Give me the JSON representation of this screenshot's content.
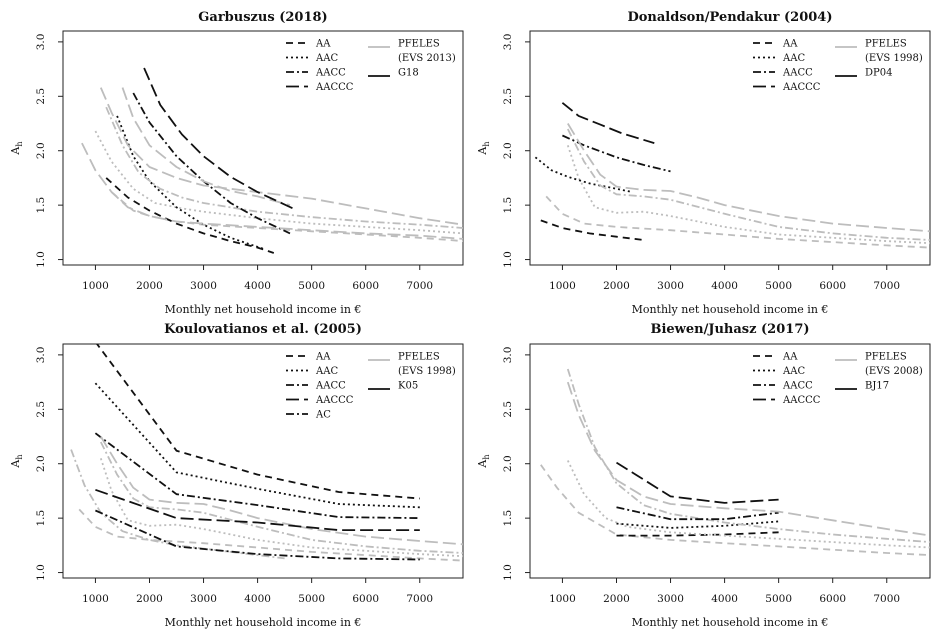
{
  "figure": {
    "x_unit_symbol": "€"
  },
  "chart_data": [
    {
      "type": "line",
      "title": "Garbuszus (2018)",
      "xlabel": "Monthly net household income in €",
      "ylabel": "A",
      "ylabel_sub": "h",
      "xlim": [
        400,
        7800
      ],
      "ylim": [
        0.95,
        3.1
      ],
      "xticks": [
        1000,
        2000,
        3000,
        4000,
        5000,
        6000,
        7000
      ],
      "yticks": [
        1.0,
        1.5,
        2.0,
        2.5,
        3.0
      ],
      "legend_col1": [
        "AA",
        "AAC",
        "AACC",
        "AACCC"
      ],
      "legend_col2": [
        "PFELES",
        "(EVS 2013)",
        "G18"
      ],
      "series": [
        {
          "name": "AA",
          "group": "pfeles",
          "dash": "dashed",
          "x": [
            1300,
            1700,
            2000,
            2500,
            3000,
            4000,
            5000,
            6000,
            7000,
            7800
          ],
          "y": [
            1.62,
            1.45,
            1.4,
            1.35,
            1.32,
            1.29,
            1.26,
            1.23,
            1.2,
            1.17
          ]
        },
        {
          "name": "AA",
          "group": "study",
          "dash": "dashed",
          "x": [
            1200,
            1600,
            2000,
            2500,
            3000,
            3500,
            4000,
            4300
          ],
          "y": [
            1.75,
            1.57,
            1.45,
            1.33,
            1.24,
            1.17,
            1.11,
            1.06
          ]
        },
        {
          "name": "AAC",
          "group": "pfeles",
          "dash": "dotted",
          "x": [
            1000,
            1300,
            1700,
            2100,
            2600,
            3000,
            4000,
            5000,
            6000,
            7000,
            7800
          ],
          "y": [
            2.18,
            1.9,
            1.65,
            1.52,
            1.47,
            1.44,
            1.38,
            1.33,
            1.3,
            1.27,
            1.24
          ]
        },
        {
          "name": "AAC",
          "group": "study",
          "dash": "dotted",
          "x": [
            1400,
            1700,
            2000,
            2500,
            3000,
            3500,
            4100
          ],
          "y": [
            2.32,
            1.95,
            1.72,
            1.48,
            1.32,
            1.2,
            1.1
          ]
        },
        {
          "name": "AACC",
          "group": "pfeles",
          "dash": "dashdot",
          "x": [
            1200,
            1500,
            1800,
            2200,
            2600,
            3000,
            4000,
            5000,
            6000,
            7000,
            7800
          ],
          "y": [
            2.4,
            2.05,
            1.8,
            1.65,
            1.57,
            1.52,
            1.44,
            1.39,
            1.35,
            1.32,
            1.29
          ]
        },
        {
          "name": "AACC",
          "group": "study",
          "dash": "dashdot",
          "x": [
            1700,
            2000,
            2500,
            3000,
            3500,
            4000,
            4600
          ],
          "y": [
            2.53,
            2.26,
            1.95,
            1.72,
            1.52,
            1.38,
            1.24
          ]
        },
        {
          "name": "AACCC",
          "group": "pfeles",
          "dash": "longdash",
          "x": [
            750,
            1000,
            1300,
            1600,
            2000,
            2500,
            3000,
            4000,
            5000,
            6000,
            7000,
            7800
          ],
          "y": [
            2.07,
            1.82,
            1.62,
            1.48,
            1.4,
            1.35,
            1.33,
            1.3,
            1.27,
            1.24,
            1.22,
            1.19
          ]
        },
        {
          "name": "AACCC",
          "group": "pfeles",
          "dash": "longdash",
          "x": [
            1100,
            1300,
            1600,
            2000,
            2500,
            3000,
            4000,
            5000,
            6000,
            7000,
            7800
          ],
          "y": [
            2.58,
            2.35,
            2.05,
            1.85,
            1.75,
            1.68,
            1.62,
            1.56,
            1.47,
            1.38,
            1.32
          ]
        },
        {
          "name": "AACCC",
          "group": "pfeles",
          "dash": "longdash",
          "x": [
            1500,
            1700,
            2000,
            2500,
            3000,
            3500,
            4000,
            4600
          ],
          "y": [
            2.58,
            2.3,
            2.05,
            1.85,
            1.72,
            1.63,
            1.58,
            1.5
          ]
        },
        {
          "name": "AACCC",
          "group": "study",
          "dash": "longdash",
          "x": [
            1900,
            2200,
            2600,
            3000,
            3500,
            4000,
            4700
          ],
          "y": [
            2.76,
            2.42,
            2.15,
            1.95,
            1.76,
            1.62,
            1.46
          ]
        }
      ]
    },
    {
      "type": "line",
      "title": "Donaldson/Pendakur (2004)",
      "xlabel": "Monthly net household income in €",
      "ylabel": "A",
      "ylabel_sub": "h",
      "xlim": [
        400,
        7800
      ],
      "ylim": [
        0.95,
        3.1
      ],
      "xticks": [
        1000,
        2000,
        3000,
        4000,
        5000,
        6000,
        7000
      ],
      "yticks": [
        1.0,
        1.5,
        2.0,
        2.5,
        3.0
      ],
      "legend_col1": [
        "AA",
        "AAC",
        "AACC",
        "AACCC"
      ],
      "legend_col2": [
        "PFELES",
        "(EVS 1998)",
        "DP04"
      ],
      "series": [
        {
          "name": "AA",
          "group": "pfeles",
          "dash": "dashed",
          "x": [
            700,
            1000,
            1400,
            2000,
            3000,
            4000,
            5000,
            6000,
            7000,
            7800
          ],
          "y": [
            1.58,
            1.42,
            1.33,
            1.3,
            1.27,
            1.23,
            1.19,
            1.16,
            1.13,
            1.11
          ]
        },
        {
          "name": "AA",
          "group": "study",
          "dash": "dashed",
          "x": [
            600,
            1000,
            1500,
            2000,
            2500
          ],
          "y": [
            1.36,
            1.29,
            1.24,
            1.21,
            1.18
          ]
        },
        {
          "name": "AAC",
          "group": "pfeles",
          "dash": "dotted",
          "x": [
            1100,
            1300,
            1600,
            2000,
            2500,
            3000,
            4000,
            5000,
            6000,
            7000,
            7800
          ],
          "y": [
            2.05,
            1.75,
            1.48,
            1.43,
            1.44,
            1.4,
            1.3,
            1.23,
            1.2,
            1.17,
            1.15
          ]
        },
        {
          "name": "AAC",
          "group": "study",
          "dash": "dotted",
          "x": [
            500,
            800,
            1100,
            1500,
            2000,
            2300
          ],
          "y": [
            1.94,
            1.82,
            1.76,
            1.7,
            1.65,
            1.62
          ]
        },
        {
          "name": "AACC",
          "group": "pfeles",
          "dash": "dashdot",
          "x": [
            1100,
            1400,
            1700,
            2000,
            2500,
            3000,
            4000,
            5000,
            6000,
            7000,
            7800
          ],
          "y": [
            2.2,
            1.9,
            1.68,
            1.6,
            1.58,
            1.55,
            1.42,
            1.3,
            1.24,
            1.2,
            1.18
          ]
        },
        {
          "name": "AACC",
          "group": "study",
          "dash": "dashdot",
          "x": [
            1000,
            1400,
            2000,
            2500,
            3000
          ],
          "y": [
            2.14,
            2.05,
            1.94,
            1.87,
            1.81
          ]
        },
        {
          "name": "AACCC",
          "group": "pfeles",
          "dash": "longdash",
          "x": [
            1100,
            1400,
            1700,
            2000,
            2500,
            3000,
            3500,
            4000,
            5000,
            6000,
            7000,
            7800
          ],
          "y": [
            2.25,
            2.0,
            1.78,
            1.67,
            1.64,
            1.63,
            1.57,
            1.5,
            1.4,
            1.33,
            1.29,
            1.26
          ]
        },
        {
          "name": "AACCC",
          "group": "study",
          "dash": "longdash",
          "x": [
            1000,
            1300,
            1700,
            2100,
            2700
          ],
          "y": [
            2.44,
            2.32,
            2.24,
            2.16,
            2.07
          ]
        }
      ]
    },
    {
      "type": "line",
      "title": "Koulovatianos et al. (2005)",
      "xlabel": "Monthly net household income in €",
      "ylabel": "A",
      "ylabel_sub": "h",
      "xlim": [
        400,
        7800
      ],
      "ylim": [
        0.95,
        3.1
      ],
      "xticks": [
        1000,
        2000,
        3000,
        4000,
        5000,
        6000,
        7000
      ],
      "yticks": [
        1.0,
        1.5,
        2.0,
        2.5,
        3.0
      ],
      "legend_col1": [
        "AA",
        "AAC",
        "AACC",
        "AACCC",
        "AC"
      ],
      "legend_col2": [
        "PFELES",
        "(EVS 1998)",
        "K05"
      ],
      "series": [
        {
          "name": "AA",
          "group": "pfeles",
          "dash": "dashed",
          "x": [
            700,
            1000,
            1400,
            2000,
            3000,
            4000,
            5000,
            6000,
            7000,
            7800
          ],
          "y": [
            1.58,
            1.42,
            1.33,
            1.3,
            1.27,
            1.23,
            1.19,
            1.16,
            1.13,
            1.11
          ]
        },
        {
          "name": "AA",
          "group": "study",
          "dash": "dashed",
          "x": [
            1000,
            2500,
            4000,
            5500,
            7000
          ],
          "y": [
            3.12,
            2.12,
            1.9,
            1.74,
            1.68
          ]
        },
        {
          "name": "AAC",
          "group": "pfeles",
          "dash": "dotted",
          "x": [
            1100,
            1300,
            1600,
            2000,
            2500,
            3000,
            4000,
            5000,
            6000,
            7000,
            7800
          ],
          "y": [
            2.05,
            1.75,
            1.48,
            1.43,
            1.44,
            1.4,
            1.3,
            1.23,
            1.2,
            1.17,
            1.15
          ]
        },
        {
          "name": "AAC",
          "group": "study",
          "dash": "dotted",
          "x": [
            1000,
            2500,
            4000,
            5500,
            7000
          ],
          "y": [
            2.74,
            1.92,
            1.77,
            1.63,
            1.6
          ]
        },
        {
          "name": "AACC",
          "group": "pfeles",
          "dash": "dashdot",
          "x": [
            1100,
            1400,
            1700,
            2000,
            2500,
            3000,
            4000,
            5000,
            6000,
            7000,
            7800
          ],
          "y": [
            2.2,
            1.9,
            1.68,
            1.6,
            1.58,
            1.55,
            1.42,
            1.3,
            1.24,
            1.2,
            1.18
          ]
        },
        {
          "name": "AACC",
          "group": "study",
          "dash": "dashdot",
          "x": [
            1000,
            2500,
            4000,
            5500,
            7000
          ],
          "y": [
            2.28,
            1.72,
            1.62,
            1.51,
            1.5
          ]
        },
        {
          "name": "AACCC",
          "group": "pfeles",
          "dash": "longdash",
          "x": [
            1100,
            1400,
            1700,
            2000,
            2500,
            3000,
            3500,
            4000,
            5000,
            6000,
            7000,
            7800
          ],
          "y": [
            2.25,
            2.0,
            1.78,
            1.67,
            1.64,
            1.63,
            1.57,
            1.5,
            1.4,
            1.33,
            1.29,
            1.26
          ]
        },
        {
          "name": "AACCC",
          "group": "study",
          "dash": "longdash",
          "x": [
            1000,
            2500,
            4000,
            5500,
            7000
          ],
          "y": [
            1.76,
            1.5,
            1.46,
            1.39,
            1.39
          ]
        },
        {
          "name": "AC",
          "group": "pfeles",
          "dash": "dashdot",
          "x": [
            550,
            800,
            1100,
            1500,
            2000,
            2500,
            3000,
            3500,
            4000,
            4500
          ],
          "y": [
            2.13,
            1.8,
            1.55,
            1.38,
            1.3,
            1.25,
            1.22,
            1.19,
            1.16,
            1.13
          ]
        },
        {
          "name": "AC",
          "group": "study",
          "dash": "dashdot",
          "x": [
            1000,
            2500,
            4000,
            5500,
            7000
          ],
          "y": [
            1.57,
            1.24,
            1.17,
            1.13,
            1.12
          ]
        }
      ]
    },
    {
      "type": "line",
      "title": "Biewen/Juhasz (2017)",
      "xlabel": "Monthly net household income in €",
      "ylabel": "A",
      "ylabel_sub": "h",
      "xlim": [
        400,
        7800
      ],
      "ylim": [
        0.95,
        3.1
      ],
      "xticks": [
        1000,
        2000,
        3000,
        4000,
        5000,
        6000,
        7000
      ],
      "yticks": [
        1.0,
        1.5,
        2.0,
        2.5,
        3.0
      ],
      "legend_col1": [
        "AA",
        "AAC",
        "AACC",
        "AACCC"
      ],
      "legend_col2": [
        "PFELES",
        "(EVS 2008)",
        "BJ17"
      ],
      "series": [
        {
          "name": "AA",
          "group": "pfeles",
          "dash": "dashed",
          "x": [
            600,
            900,
            1300,
            2000,
            3000,
            4000,
            5000,
            6000,
            7000,
            7800
          ],
          "y": [
            1.99,
            1.78,
            1.55,
            1.35,
            1.3,
            1.27,
            1.24,
            1.21,
            1.18,
            1.16
          ]
        },
        {
          "name": "AA",
          "group": "study",
          "dash": "dashed",
          "x": [
            2000,
            3000,
            4000,
            5000
          ],
          "y": [
            1.34,
            1.34,
            1.35,
            1.37
          ]
        },
        {
          "name": "AAC",
          "group": "pfeles",
          "dash": "dotted",
          "x": [
            1100,
            1400,
            1800,
            2200,
            3000,
            4000,
            5000,
            6000,
            7000,
            7800
          ],
          "y": [
            2.03,
            1.72,
            1.5,
            1.42,
            1.37,
            1.34,
            1.31,
            1.28,
            1.25,
            1.23
          ]
        },
        {
          "name": "AAC",
          "group": "study",
          "dash": "dotted",
          "x": [
            2000,
            3000,
            4000,
            5000
          ],
          "y": [
            1.45,
            1.41,
            1.43,
            1.47
          ]
        },
        {
          "name": "AACC",
          "group": "pfeles",
          "dash": "dashdot",
          "x": [
            1100,
            1300,
            1600,
            2000,
            2500,
            3000,
            4000,
            5000,
            6000,
            7000,
            7800
          ],
          "y": [
            2.87,
            2.55,
            2.15,
            1.82,
            1.62,
            1.54,
            1.46,
            1.4,
            1.35,
            1.31,
            1.28
          ]
        },
        {
          "name": "AACC",
          "group": "study",
          "dash": "dashdot",
          "x": [
            2000,
            3000,
            4000,
            5000
          ],
          "y": [
            1.6,
            1.49,
            1.49,
            1.55
          ]
        },
        {
          "name": "AACCC",
          "group": "pfeles",
          "dash": "longdash",
          "x": [
            1100,
            1300,
            1600,
            2000,
            2500,
            3000,
            4000,
            5000,
            6000,
            7000,
            7800
          ],
          "y": [
            2.75,
            2.45,
            2.12,
            1.85,
            1.7,
            1.63,
            1.59,
            1.56,
            1.48,
            1.4,
            1.34
          ]
        },
        {
          "name": "AACCC",
          "group": "study",
          "dash": "longdash",
          "x": [
            2000,
            3000,
            4000,
            5000
          ],
          "y": [
            2.01,
            1.7,
            1.64,
            1.67
          ]
        }
      ]
    }
  ]
}
